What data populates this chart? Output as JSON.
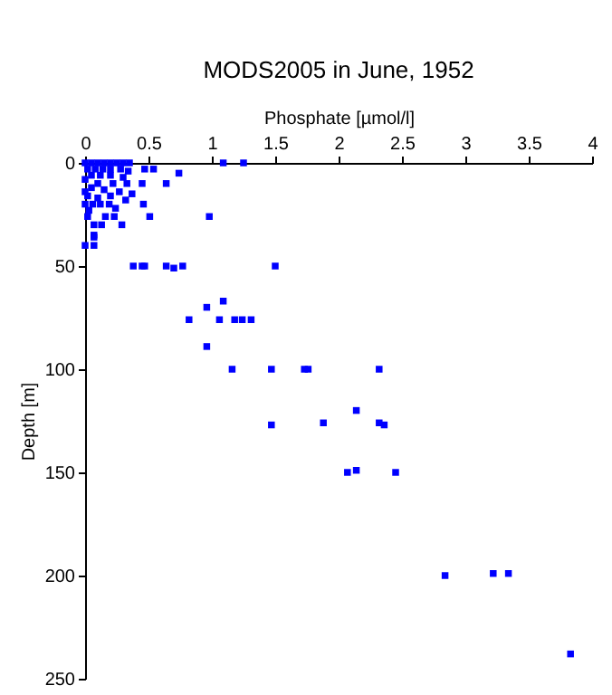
{
  "chart_data": {
    "type": "scatter",
    "title": "MODS2005 in June, 1952",
    "xlabel": "Phosphate [µmol/l]",
    "ylabel": "Depth [m]",
    "x": [
      0,
      0.05,
      0.1,
      0.15,
      0.2,
      0.25,
      0.3,
      0.35,
      0.02,
      0.08,
      0.14,
      0.2,
      0.28,
      0.34,
      0.05,
      0.12,
      0.2,
      0.3,
      0.1,
      0.22,
      0.33,
      0.05,
      0.15,
      0.27,
      0.02,
      0.1,
      0.2,
      0.06,
      0.12,
      0.03,
      0.24,
      0.32,
      0,
      0,
      0,
      1.09,
      1.25,
      0.74,
      0.54,
      0.47,
      0.64,
      0.45,
      0.37,
      0.46,
      0.51,
      0.98,
      0.29,
      0.16,
      0.23,
      0.19,
      0.07,
      0.13,
      0.02,
      0.07,
      0,
      0.07,
      0.07,
      0.38,
      0.45,
      0.47,
      0.64,
      0.7,
      0.77,
      1.5,
      0.82,
      0.96,
      0.96,
      1.09,
      1.06,
      1.18,
      1.24,
      1.31,
      1.16,
      1.47,
      1.73,
      1.76,
      2.32,
      1.47,
      1.88,
      2.14,
      2.32,
      2.36,
      2.07,
      2.14,
      2.45,
      2.84,
      3.22,
      3.34,
      3.83
    ],
    "series": [
      {
        "color": "#0000ff",
        "values": [
          0,
          0,
          0,
          0,
          0,
          0,
          0,
          0,
          3,
          3,
          3,
          3,
          3,
          4,
          6,
          6,
          6,
          7,
          10,
          10,
          10,
          12,
          13,
          14,
          16,
          17,
          16,
          20,
          20,
          23,
          22,
          18,
          8,
          14,
          20,
          0,
          0,
          5,
          3,
          3,
          10,
          10,
          15,
          20,
          26,
          26,
          30,
          26,
          26,
          20,
          30,
          30,
          26,
          35,
          40,
          40,
          36,
          50,
          50,
          50,
          50,
          51,
          50,
          50,
          76,
          70,
          89,
          67,
          76,
          76,
          76,
          76,
          100,
          100,
          100,
          100,
          100,
          127,
          126,
          120,
          126,
          127,
          150,
          149,
          150,
          200,
          199,
          199,
          238
        ]
      }
    ],
    "xlim": [
      0,
      4
    ],
    "xticks": [
      0,
      0.5,
      1,
      1.5,
      2,
      2.5,
      3,
      3.5,
      4
    ],
    "ylim": [
      250,
      0
    ],
    "yticks": [
      0,
      50,
      100,
      150,
      200,
      250
    ],
    "grid": false,
    "marker": "square"
  }
}
